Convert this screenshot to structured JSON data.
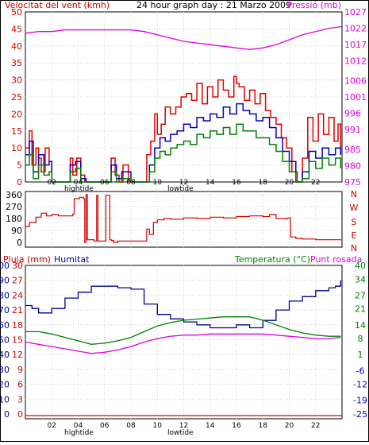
{
  "panels": {
    "wind": {
      "title": "24 hour graph day : 21 Marzo 2009",
      "left_label": "Velocitat del vent (kmh)",
      "right_label": "Pressió (mb)"
    },
    "direction": {
      "right_labels": [
        "N",
        "W",
        "S",
        "E",
        "N"
      ]
    },
    "climate": {
      "labels": {
        "rain": "Pluja (mm)",
        "humidity": "Humitat",
        "temperature": "Temperatura (°C)",
        "dewpoint": "Punt rosada"
      }
    },
    "tides": {
      "high": "hightide",
      "low": "lowtide"
    }
  },
  "colors": {
    "frame": "#000000",
    "wind_gust": "#e00000",
    "wind_speed": "#0000c0",
    "wind_avg": "#008000",
    "pressure": "#e000e0",
    "direction": "#d00000",
    "humidity": "#000090",
    "temperature": "#008000",
    "dewpoint": "#e000e0",
    "rain": "#e00000",
    "left_axis_text": "#cc0000",
    "humidity_text": "#000090",
    "temp_axis_text": "#008000",
    "dew_text": "#e000e0",
    "neg_axis_text": "#0000cc"
  },
  "chart_data": [
    {
      "type": "line",
      "name": "wind_and_pressure",
      "title": "24 hour graph day : 21 Marzo 2009",
      "x_range": [
        0,
        24
      ],
      "x_ticks": [
        "02",
        "04",
        "06",
        "08",
        "10",
        "12",
        "14",
        "16",
        "18",
        "20",
        "22"
      ],
      "x_tick_values": [
        2,
        4,
        6,
        8,
        10,
        12,
        14,
        16,
        18,
        20,
        22
      ],
      "ylabel": "Velocitat del vent (kmh)",
      "ylim": [
        0,
        50
      ],
      "y_ticks": [
        0,
        5,
        10,
        15,
        20,
        25,
        30,
        35,
        40,
        45,
        50
      ],
      "y2label": "Pressió (mb)",
      "y2_ticks": [
        "975",
        "980",
        "985",
        "991",
        "996",
        "1001",
        "1006",
        "1012",
        "1017",
        "1022",
        "1027"
      ],
      "y2_tick_values": [
        975,
        980,
        985,
        991,
        996,
        1001,
        1006,
        1012,
        1017,
        1022,
        1027
      ],
      "y2lim": [
        975,
        1027
      ],
      "series": [
        {
          "key": "gust",
          "x": [
            0,
            0.3,
            0.5,
            0.8,
            1.0,
            1.2,
            1.5,
            1.8,
            2.0,
            2.5,
            3.0,
            3.4,
            3.6,
            3.9,
            4.2,
            4.5,
            5.0,
            5.5,
            6.0,
            6.5,
            6.8,
            7.1,
            7.4,
            7.8,
            8.2,
            8.6,
            9.0,
            9.2,
            9.5,
            9.8,
            10.0,
            10.3,
            10.6,
            11.0,
            11.4,
            11.8,
            12.2,
            12.6,
            13.0,
            13.4,
            13.8,
            14.2,
            14.6,
            15.0,
            15.4,
            15.8,
            16.0,
            16.2,
            16.6,
            17.0,
            17.4,
            17.8,
            18.2,
            18.6,
            19.0,
            19.4,
            19.8,
            20.2,
            20.6,
            21.0,
            21.4,
            21.8,
            22.2,
            22.6,
            23.0,
            23.4,
            23.7,
            23.9
          ],
          "y": [
            10,
            15,
            5,
            10,
            7,
            3,
            10,
            6,
            0,
            0,
            0,
            7,
            2,
            7,
            2,
            0,
            0,
            0,
            0,
            7,
            2,
            0,
            5,
            0,
            0,
            0,
            0,
            8,
            12,
            20,
            14,
            17,
            22,
            20,
            22,
            25,
            26,
            24,
            29,
            23,
            28,
            25,
            30,
            27,
            25,
            31,
            29,
            28,
            24,
            27,
            23,
            26,
            21,
            19,
            17,
            13,
            10,
            3,
            0,
            7,
            19,
            12,
            20,
            14,
            19,
            12,
            17,
            8
          ]
        },
        {
          "key": "speed",
          "x": [
            0,
            0.3,
            0.6,
            1.0,
            1.4,
            1.8,
            2.0,
            3.0,
            3.4,
            3.8,
            4.2,
            4.6,
            5.0,
            6.0,
            6.5,
            6.9,
            7.3,
            8.0,
            9.0,
            9.4,
            9.8,
            10.2,
            10.6,
            11.0,
            11.5,
            12.0,
            12.5,
            13.0,
            13.5,
            14.0,
            14.5,
            15.0,
            15.5,
            16.0,
            16.5,
            17.0,
            17.5,
            18.0,
            18.5,
            19.0,
            19.5,
            20.0,
            20.5,
            21.0,
            21.5,
            22.0,
            22.5,
            23.0,
            23.5,
            23.9
          ],
          "y": [
            8,
            12,
            3,
            8,
            5,
            6,
            0,
            0,
            5,
            6,
            1,
            0,
            0,
            0,
            5,
            1,
            3,
            0,
            0,
            5,
            10,
            13,
            12,
            14,
            15,
            17,
            16,
            19,
            18,
            20,
            19,
            22,
            20,
            23,
            21,
            20,
            18,
            19,
            16,
            13,
            9,
            6,
            0,
            3,
            9,
            7,
            10,
            8,
            10,
            8
          ]
        },
        {
          "key": "average",
          "x": [
            0,
            0.3,
            0.6,
            1.0,
            1.4,
            1.8,
            2.0,
            3.0,
            3.4,
            3.8,
            4.2,
            4.6,
            6.0,
            6.5,
            6.9,
            7.3,
            8.0,
            9.0,
            9.4,
            9.8,
            10.2,
            10.6,
            11.0,
            11.5,
            12.0,
            12.5,
            13.0,
            13.5,
            14.0,
            14.5,
            15.0,
            15.5,
            16.0,
            16.5,
            17.0,
            17.5,
            18.0,
            18.5,
            19.0,
            19.5,
            20.0,
            20.5,
            21.0,
            21.5,
            22.0,
            22.5,
            23.0,
            23.5,
            23.9
          ],
          "y": [
            5,
            8,
            1,
            5,
            2,
            3,
            0,
            0,
            3,
            4,
            0,
            0,
            0,
            3,
            0,
            1,
            0,
            0,
            3,
            7,
            9,
            8,
            10,
            11,
            12,
            11,
            14,
            13,
            15,
            14,
            16,
            14,
            17,
            15,
            15,
            13,
            13,
            11,
            9,
            6,
            3,
            0,
            1,
            6,
            4,
            7,
            5,
            7,
            4
          ]
        },
        {
          "key": "pressure",
          "axis": "y2",
          "x": [
            0,
            1,
            2,
            3,
            4,
            5,
            6,
            7,
            8,
            9,
            10,
            11,
            12,
            13,
            14,
            15,
            16,
            17,
            18,
            19,
            20,
            21,
            22,
            23,
            24
          ],
          "y": [
            1020.5,
            1021,
            1021,
            1021.5,
            1021.5,
            1021.5,
            1021.5,
            1021.5,
            1021.5,
            1021,
            1020,
            1019,
            1018,
            1017.5,
            1017,
            1016.5,
            1016,
            1015.5,
            1016,
            1017,
            1018.5,
            1020,
            1021,
            1022,
            1022.5
          ]
        }
      ]
    },
    {
      "type": "line",
      "name": "wind_direction",
      "x_range": [
        0,
        24
      ],
      "ylim": [
        0,
        360
      ],
      "y_ticks": [
        0,
        90,
        180,
        270,
        360
      ],
      "y2_labels": [
        "N",
        "W",
        "S",
        "E",
        "N"
      ],
      "series": [
        {
          "key": "direction",
          "x": [
            0,
            0.3,
            0.8,
            1.2,
            1.6,
            2.0,
            2.5,
            3.0,
            3.6,
            3.7,
            4.1,
            4.4,
            4.5,
            4.6,
            4.7,
            5.2,
            5.4,
            5.5,
            6.0,
            6.1,
            6.4,
            6.5,
            6.7,
            7.0,
            7.5,
            8.0,
            8.5,
            9.0,
            9.2,
            9.4,
            9.7,
            10.0,
            10.5,
            11.0,
            12.0,
            13.0,
            14.0,
            15.0,
            16.0,
            17.0,
            18.0,
            18.5,
            19.0,
            19.5,
            19.9,
            20.1,
            20.5,
            21.0,
            22.0,
            23.0,
            23.9
          ],
          "y": [
            120,
            150,
            190,
            220,
            200,
            210,
            200,
            200,
            215,
            330,
            340,
            330,
            0,
            360,
            20,
            10,
            355,
            10,
            10,
            355,
            20,
            15,
            0,
            10,
            10,
            10,
            10,
            10,
            100,
            60,
            150,
            170,
            180,
            175,
            185,
            180,
            190,
            185,
            195,
            200,
            195,
            210,
            180,
            180,
            185,
            40,
            30,
            25,
            20,
            20,
            15
          ]
        }
      ]
    },
    {
      "type": "line",
      "name": "humidity_temp_rain",
      "x_range": [
        0,
        24
      ],
      "x_ticks": [
        "02",
        "04",
        "06",
        "08",
        "10",
        "12",
        "14",
        "16",
        "18",
        "20",
        "22"
      ],
      "x_tick_values": [
        2,
        4,
        6,
        8,
        10,
        12,
        14,
        16,
        18,
        20,
        22
      ],
      "rain_axis": {
        "ylim": [
          0,
          30
        ],
        "ticks": [
          0,
          3,
          6,
          9,
          12,
          15,
          18,
          21,
          24,
          27,
          30
        ]
      },
      "humidity_axis": {
        "ylim": [
          0,
          100
        ],
        "ticks": [
          0,
          10,
          20,
          30,
          40,
          50,
          60,
          70,
          80,
          90,
          100
        ]
      },
      "temperature_axis": {
        "ylim": [
          -25,
          40
        ],
        "ticks": [
          -25,
          -19,
          -12,
          -6,
          1,
          8,
          14,
          21,
          27,
          34,
          40
        ]
      },
      "series": [
        {
          "key": "humidity",
          "x": [
            0,
            0.5,
            1.0,
            1.5,
            2.0,
            3.0,
            4.0,
            5.0,
            6.0,
            6.5,
            7.0,
            7.5,
            8.0,
            9.0,
            10.0,
            11.0,
            12.0,
            13.0,
            14.0,
            15.0,
            16.0,
            17.0,
            18.0,
            19.0,
            20.0,
            21.0,
            22.0,
            23.0,
            23.5,
            23.9
          ],
          "y": [
            73,
            71,
            68,
            68,
            71,
            78,
            82,
            86,
            86,
            86,
            85,
            85,
            84,
            74,
            67,
            64,
            62,
            60,
            58,
            58,
            60,
            58,
            63,
            70,
            76,
            79,
            83,
            85,
            86,
            90
          ]
        },
        {
          "key": "temperature",
          "x": [
            0,
            1,
            2,
            3,
            4,
            5,
            6,
            7,
            8,
            9,
            10,
            11,
            12,
            13,
            14,
            15,
            16,
            17,
            18,
            19,
            20,
            21,
            22,
            23,
            23.9
          ],
          "y": [
            11,
            11,
            10,
            8.5,
            7,
            5.5,
            6,
            7,
            8.5,
            11,
            13.5,
            15,
            16,
            16.5,
            17,
            17.5,
            17.5,
            17.5,
            16,
            14,
            12,
            10.5,
            9.5,
            9,
            9
          ]
        },
        {
          "key": "dewpoint",
          "x": [
            0,
            1,
            2,
            3,
            4,
            5,
            6,
            7,
            8,
            9,
            10,
            11,
            12,
            13,
            14,
            15,
            16,
            17,
            18,
            19,
            20,
            21,
            22,
            23,
            23.9
          ],
          "y": [
            6.5,
            5.5,
            4.5,
            3.5,
            2.5,
            1.5,
            2,
            3,
            4.5,
            6.5,
            8,
            9,
            9.5,
            9.5,
            10,
            10,
            10,
            10,
            10,
            9.5,
            9,
            8.5,
            8,
            8,
            8.5
          ]
        },
        {
          "key": "rain",
          "x": [
            0,
            24
          ],
          "y": [
            0,
            0
          ]
        }
      ]
    }
  ]
}
